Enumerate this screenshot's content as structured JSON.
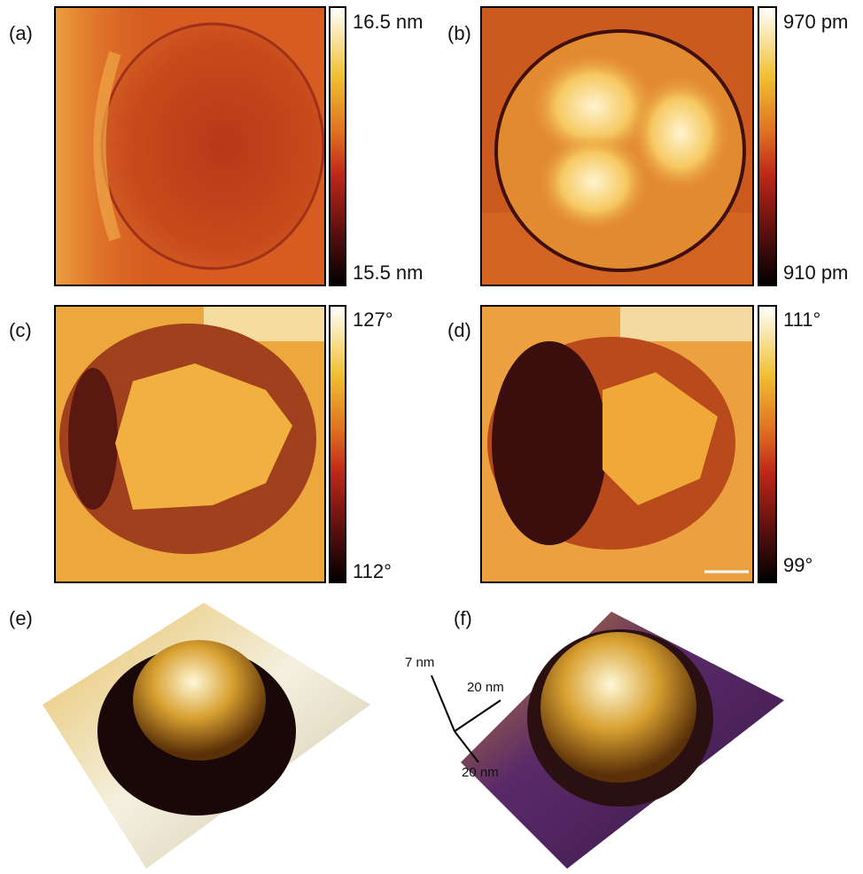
{
  "panels": [
    {
      "label": "(a)",
      "max": "16.5 nm",
      "min": "15.5 nm"
    },
    {
      "label": "(b)",
      "max": "970 pm",
      "min": "910 pm"
    },
    {
      "label": "(c)",
      "max": "127°",
      "min": "112°"
    },
    {
      "label": "(d)",
      "max": "111°",
      "min": "99°"
    },
    {
      "label": "(e)"
    },
    {
      "label": "(f)"
    }
  ],
  "axes_3d": {
    "z": "7 nm",
    "x": "20 nm",
    "y": "20 nm"
  }
}
